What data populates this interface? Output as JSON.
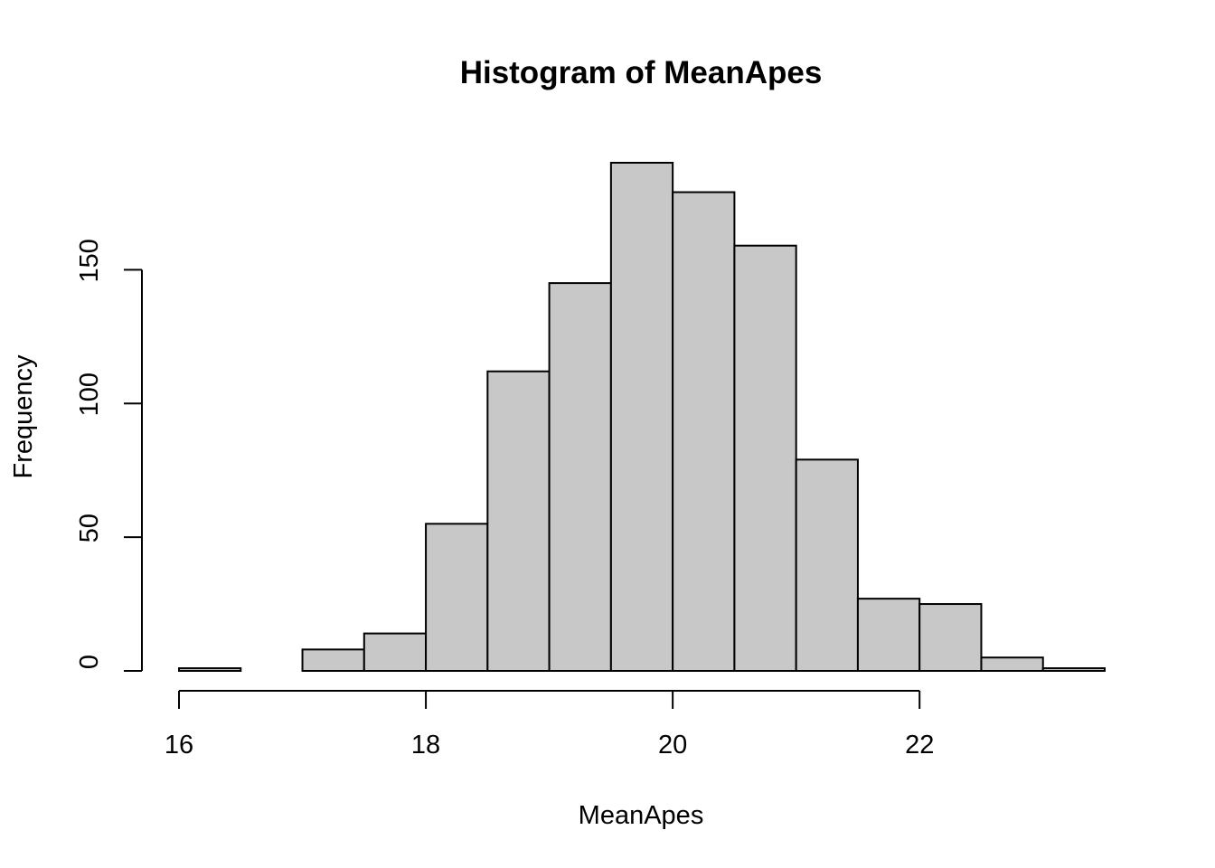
{
  "chart_data": {
    "type": "bar",
    "histogram": true,
    "title": "Histogram of MeanApes",
    "xlabel": "MeanApes",
    "ylabel": "Frequency",
    "bin_edges": [
      16,
      16.5,
      17,
      17.5,
      18,
      18.5,
      19,
      19.5,
      20,
      20.5,
      21,
      21.5,
      22,
      22.5,
      23,
      23.5
    ],
    "values": [
      1,
      0,
      8,
      14,
      55,
      112,
      145,
      190,
      179,
      159,
      79,
      27,
      25,
      5,
      1
    ],
    "xlim": [
      16,
      23.5
    ],
    "ylim": [
      0,
      190
    ],
    "x_ticks": [
      16,
      18,
      20,
      22
    ],
    "x_tick_labels": [
      "16",
      "18",
      "20",
      "22"
    ],
    "y_ticks": [
      0,
      50,
      100,
      150
    ],
    "y_tick_labels": [
      "0",
      "50",
      "100",
      "150"
    ],
    "bar_fill": "#c8c8c8",
    "bar_stroke": "#000000",
    "grid": false,
    "legend": "none"
  }
}
